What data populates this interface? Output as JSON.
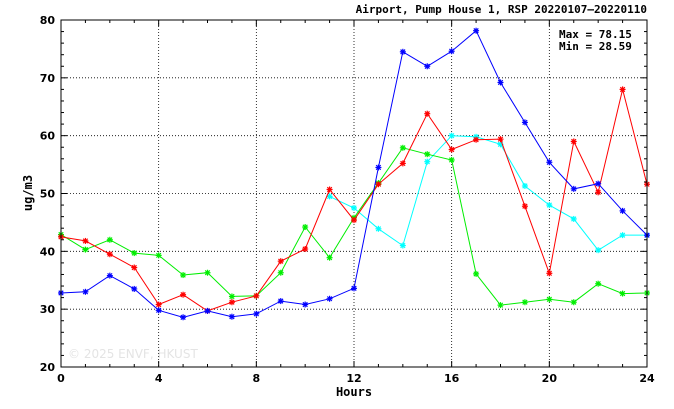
{
  "chart_data": {
    "type": "line",
    "title": "Airport, Pump House 1, RSP 20220107–20220110",
    "xlabel": "Hours",
    "ylabel": "ug/m3",
    "xlim": [
      0,
      24
    ],
    "ylim": [
      20,
      80
    ],
    "xticks": [
      "0",
      "4",
      "8",
      "12",
      "16",
      "20",
      "24"
    ],
    "yticks": [
      "20",
      "30",
      "40",
      "50",
      "60",
      "70",
      "80"
    ],
    "grid": true,
    "max_label": "Max = 78.15",
    "min_label": "Min = 28.59",
    "watermark": "© 2025  ENVF, HKUST",
    "series": [
      {
        "color": "#0000ff",
        "x": [
          0,
          1,
          2,
          3,
          4,
          5,
          6,
          7,
          8,
          9,
          10,
          11,
          12,
          13,
          14,
          15,
          16,
          17,
          18,
          19,
          20,
          21,
          22,
          23,
          24
        ],
        "values": [
          32.8,
          33.0,
          35.8,
          33.5,
          29.8,
          28.6,
          29.7,
          28.7,
          29.2,
          31.4,
          30.8,
          31.8,
          33.6,
          54.5,
          74.5,
          72.0,
          74.6,
          78.15,
          69.2,
          62.3,
          55.4,
          50.8,
          51.7,
          47.0,
          42.8
        ]
      },
      {
        "color": "#ff0000",
        "x": [
          0,
          1,
          2,
          3,
          4,
          5,
          6,
          7,
          8,
          9,
          10,
          11,
          12,
          13,
          14,
          15,
          16,
          17,
          18,
          19,
          20,
          21,
          22,
          23,
          24
        ],
        "values": [
          42.5,
          41.8,
          39.5,
          37.2,
          30.8,
          32.5,
          29.7,
          31.2,
          32.3,
          38.3,
          40.4,
          50.7,
          45.4,
          51.6,
          55.2,
          63.8,
          57.6,
          59.3,
          59.4,
          47.8,
          36.2,
          59.0,
          50.2,
          68.0,
          51.6
        ]
      },
      {
        "color": "#00ee00",
        "x": [
          0,
          1,
          2,
          3,
          4,
          5,
          6,
          7,
          8,
          9,
          10,
          11,
          12,
          13,
          14,
          15,
          16,
          17,
          18,
          19,
          20,
          21,
          22,
          23,
          24
        ],
        "values": [
          42.9,
          40.3,
          42.0,
          39.7,
          39.3,
          35.9,
          36.3,
          32.2,
          32.3,
          36.3,
          44.2,
          38.9,
          45.8,
          51.8,
          57.9,
          56.8,
          55.8,
          36.1,
          30.7,
          31.2,
          31.7,
          31.2,
          34.4,
          32.7,
          32.8
        ]
      },
      {
        "color": "#00ffff",
        "x": [
          11,
          12,
          13,
          14,
          15,
          16,
          17,
          18,
          19,
          20,
          21,
          22,
          23,
          24
        ],
        "values": [
          49.5,
          47.5,
          43.9,
          41.0,
          55.5,
          60.0,
          59.8,
          58.5,
          51.3,
          48.0,
          45.6,
          40.2,
          42.8,
          42.8
        ]
      }
    ]
  }
}
